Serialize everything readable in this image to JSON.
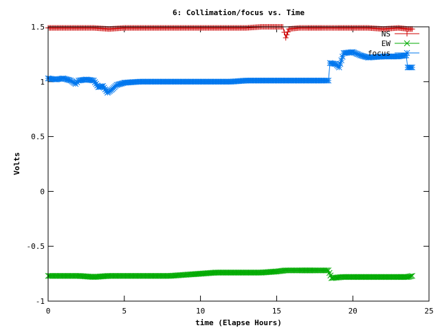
{
  "chart_data": {
    "type": "line",
    "title": "6: Collimation/focus vs. Time",
    "xlabel": "time (Elapse Hours)",
    "ylabel": "Volts",
    "xlim": [
      0,
      25
    ],
    "ylim": [
      -1,
      1.5
    ],
    "xticks": [
      0,
      5,
      10,
      15,
      20,
      25
    ],
    "xtick_labels": [
      "0",
      "5",
      "10",
      "15",
      "20",
      "25"
    ],
    "yticks": [
      -1,
      -0.5,
      0,
      0.5,
      1,
      1.5
    ],
    "ytick_labels": [
      "-1",
      "-0.5",
      "0",
      "0.5",
      "1",
      "1.5"
    ],
    "grid": false,
    "legend_position": "top-right",
    "series": [
      {
        "name": "NS",
        "color": "#cc0000",
        "marker": "plus",
        "x": [
          0,
          1,
          2,
          3,
          4,
          5,
          6,
          7,
          8,
          9,
          10,
          11,
          12,
          13,
          14,
          15,
          15.4,
          15.6,
          15.8,
          16.5,
          17,
          18,
          18.5,
          19,
          20,
          21,
          22,
          23,
          23.6,
          23.9
        ],
        "y": [
          1.49,
          1.49,
          1.49,
          1.49,
          1.48,
          1.49,
          1.49,
          1.49,
          1.49,
          1.49,
          1.49,
          1.49,
          1.49,
          1.49,
          1.5,
          1.5,
          1.5,
          1.4,
          1.48,
          1.49,
          1.49,
          1.49,
          1.49,
          1.49,
          1.49,
          1.49,
          1.48,
          1.49,
          1.48,
          1.48
        ]
      },
      {
        "name": "EW",
        "color": "#00aa00",
        "marker": "cross",
        "x": [
          0,
          1,
          2,
          3,
          4,
          5,
          6,
          7,
          8,
          9,
          10,
          11,
          12,
          13,
          14,
          15,
          15.6,
          16.5,
          17.5,
          18.4,
          18.6,
          19.3,
          20,
          21,
          22,
          23,
          23.6,
          23.9
        ],
        "y": [
          -0.77,
          -0.77,
          -0.77,
          -0.78,
          -0.77,
          -0.77,
          -0.77,
          -0.77,
          -0.77,
          -0.76,
          -0.75,
          -0.74,
          -0.74,
          -0.74,
          -0.74,
          -0.73,
          -0.72,
          -0.72,
          -0.72,
          -0.72,
          -0.79,
          -0.78,
          -0.78,
          -0.78,
          -0.78,
          -0.78,
          -0.78,
          -0.77
        ]
      },
      {
        "name": "focus",
        "color": "#0077ee",
        "marker": "star",
        "x": [
          0,
          0.5,
          1,
          1.5,
          1.8,
          2,
          2.5,
          3,
          3.3,
          3.6,
          3.9,
          4.2,
          4.5,
          5,
          6,
          7,
          8,
          9,
          10,
          11,
          12,
          13,
          14,
          15,
          16,
          17,
          18,
          18.4,
          18.5,
          18.9,
          19.1,
          19.4,
          20,
          20.5,
          21,
          22,
          23,
          23.5,
          23.6,
          23.9
        ],
        "y": [
          1.03,
          1.02,
          1.03,
          1.01,
          0.98,
          1.01,
          1.02,
          1.01,
          0.95,
          0.96,
          0.9,
          0.93,
          0.97,
          0.99,
          1.0,
          1.0,
          1.0,
          1.0,
          1.0,
          1.0,
          1.0,
          1.01,
          1.01,
          1.01,
          1.01,
          1.01,
          1.01,
          1.01,
          1.17,
          1.16,
          1.13,
          1.26,
          1.27,
          1.24,
          1.22,
          1.23,
          1.23,
          1.24,
          1.13,
          1.13
        ]
      }
    ]
  }
}
